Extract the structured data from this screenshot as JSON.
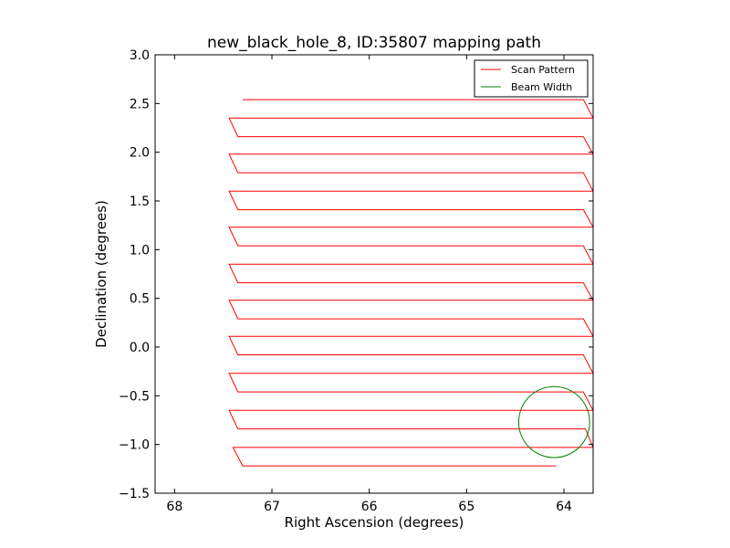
{
  "chart_data": {
    "type": "line",
    "title": "new_black_hole_8, ID:35807 mapping path",
    "xlabel": "Right Ascension (degrees)",
    "ylabel": "Declination (degrees)",
    "xlim": [
      68.2,
      63.7
    ],
    "ylim": [
      -1.5,
      3.0
    ],
    "x_inverted": true,
    "grid": false,
    "legend_position": "top-right",
    "x_ticks": [
      68,
      67,
      66,
      65,
      64
    ],
    "x_tick_labels": [
      "68",
      "67",
      "66",
      "65",
      "64"
    ],
    "y_ticks": [
      -1.5,
      -1.0,
      -0.5,
      0.0,
      0.5,
      1.0,
      1.5,
      2.0,
      2.5,
      3.0
    ],
    "y_tick_labels": [
      "−1.5",
      "−1.0",
      "−0.5",
      "0.0",
      "0.5",
      "1.0",
      "1.5",
      "2.0",
      "2.5",
      "3.0"
    ],
    "series": [
      {
        "name": "Scan Pattern",
        "color": "#ff0000",
        "points": [
          [
            64.08,
            -1.22
          ],
          [
            67.3,
            -1.22
          ],
          [
            67.4,
            -1.03
          ],
          [
            63.7,
            -1.03
          ],
          [
            63.78,
            -0.84
          ],
          [
            67.35,
            -0.84
          ],
          [
            67.44,
            -0.65
          ],
          [
            63.7,
            -0.65
          ],
          [
            63.8,
            -0.46
          ],
          [
            67.35,
            -0.46
          ],
          [
            67.44,
            -0.27
          ],
          [
            63.7,
            -0.27
          ],
          [
            63.8,
            -0.08
          ],
          [
            67.35,
            -0.08
          ],
          [
            67.44,
            0.11
          ],
          [
            63.7,
            0.11
          ],
          [
            63.8,
            0.29
          ],
          [
            67.35,
            0.29
          ],
          [
            67.44,
            0.48
          ],
          [
            63.7,
            0.48
          ],
          [
            63.8,
            0.66
          ],
          [
            67.35,
            0.66
          ],
          [
            67.44,
            0.85
          ],
          [
            63.7,
            0.85
          ],
          [
            63.8,
            1.04
          ],
          [
            67.35,
            1.04
          ],
          [
            67.44,
            1.23
          ],
          [
            63.7,
            1.23
          ],
          [
            63.8,
            1.41
          ],
          [
            67.35,
            1.41
          ],
          [
            67.44,
            1.6
          ],
          [
            63.7,
            1.6
          ],
          [
            63.8,
            1.79
          ],
          [
            67.35,
            1.79
          ],
          [
            67.44,
            1.98
          ],
          [
            63.7,
            1.98
          ],
          [
            63.8,
            2.16
          ],
          [
            67.35,
            2.16
          ],
          [
            67.44,
            2.35
          ],
          [
            63.7,
            2.35
          ],
          [
            63.8,
            2.54
          ],
          [
            67.3,
            2.54
          ]
        ]
      }
    ],
    "beam": {
      "name": "Beam Width",
      "color": "#008000",
      "center": [
        64.1,
        -0.77
      ],
      "radius_dec": 0.365
    }
  }
}
